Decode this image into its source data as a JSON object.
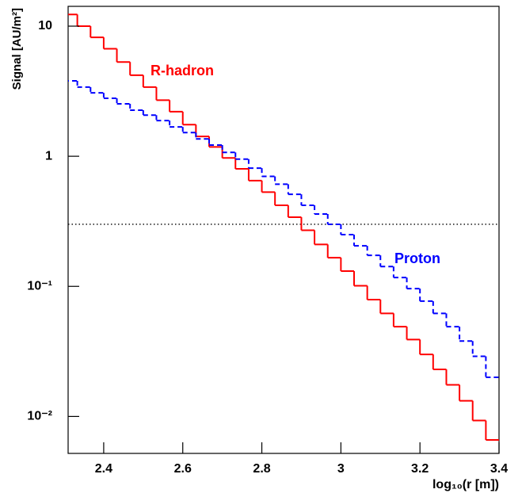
{
  "chart_data": {
    "type": "histogram",
    "x_label": "log₁₀(r [m])",
    "y_label": "Signal [AU/m²]",
    "log_y": true,
    "bins": [
      2.3,
      2.3333,
      2.3667,
      2.4,
      2.4333,
      2.4667,
      2.5,
      2.5333,
      2.5667,
      2.6,
      2.6333,
      2.6667,
      2.7,
      2.7333,
      2.7667,
      2.8,
      2.8333,
      2.8667,
      2.9,
      2.9333,
      2.9667,
      3.0,
      3.0333,
      3.0667,
      3.1,
      3.1333,
      3.1667,
      3.2,
      3.2333,
      3.2667,
      3.3,
      3.3333,
      3.3667,
      3.4
    ],
    "series": [
      {
        "name": "R-hadron",
        "color": "#ff0000",
        "dash": false,
        "values": [
          12.3,
          10.0,
          8.2,
          6.7,
          5.3,
          4.2,
          3.4,
          2.7,
          2.2,
          1.75,
          1.42,
          1.18,
          0.97,
          0.8,
          0.65,
          0.53,
          0.42,
          0.34,
          0.27,
          0.21,
          0.166,
          0.131,
          0.101,
          0.079,
          0.062,
          0.049,
          0.039,
          0.03,
          0.023,
          0.0175,
          0.0132,
          0.0093,
          0.0066
        ]
      },
      {
        "name": "Proton",
        "color": "#0000ff",
        "dash": true,
        "values": [
          3.8,
          3.4,
          3.07,
          2.79,
          2.53,
          2.26,
          2.07,
          1.88,
          1.68,
          1.52,
          1.36,
          1.22,
          1.07,
          0.95,
          0.81,
          0.7,
          0.61,
          0.51,
          0.42,
          0.36,
          0.3,
          0.25,
          0.205,
          0.173,
          0.142,
          0.117,
          0.096,
          0.077,
          0.062,
          0.049,
          0.038,
          0.029,
          0.02
        ]
      }
    ],
    "reference_line": 0.3,
    "xlim": [
      2.31,
      3.4
    ],
    "ylim": [
      0.0052,
      14.2
    ],
    "xticks": [
      2.4,
      2.6,
      2.8,
      3,
      3.2,
      3.4
    ],
    "yticks": [
      {
        "value": 0.01,
        "label": "10⁻²"
      },
      {
        "value": 0.1,
        "label": "10⁻¹"
      },
      1,
      10
    ]
  }
}
